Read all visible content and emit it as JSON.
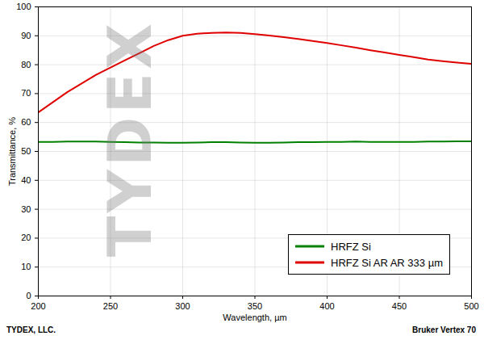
{
  "chart_data": {
    "type": "line",
    "x_label": "Wavelength, µm",
    "y_label": "Transmittance, %",
    "watermark": "TYDEX",
    "footer_left": "TYDEX, LLC.",
    "footer_right": "Bruker Vertex 70",
    "x": [
      200,
      210,
      220,
      230,
      240,
      250,
      260,
      270,
      280,
      290,
      300,
      310,
      320,
      330,
      340,
      350,
      360,
      370,
      380,
      390,
      400,
      410,
      420,
      430,
      440,
      450,
      460,
      470,
      480,
      490,
      500
    ],
    "series": [
      {
        "name": "HRFZ Si",
        "color": "#008000",
        "line_style": "solid",
        "values": [
          53.3,
          53.3,
          53.4,
          53.4,
          53.4,
          53.3,
          53.2,
          53.1,
          53.1,
          53.0,
          53.0,
          53.1,
          53.2,
          53.2,
          53.1,
          53.0,
          53.0,
          53.1,
          53.2,
          53.2,
          53.3,
          53.3,
          53.4,
          53.3,
          53.3,
          53.3,
          53.3,
          53.4,
          53.4,
          53.5,
          53.5
        ]
      },
      {
        "name": "HRFZ Si AR AR 333 µm",
        "color": "#e00000",
        "line_style": "solid",
        "values": [
          63.5,
          67.0,
          70.5,
          73.5,
          76.5,
          79.0,
          81.5,
          84.0,
          86.5,
          88.5,
          90.0,
          90.7,
          91.0,
          91.1,
          91.0,
          90.6,
          90.1,
          89.5,
          88.9,
          88.2,
          87.5,
          86.7,
          85.9,
          85.0,
          84.2,
          83.4,
          82.6,
          81.8,
          81.2,
          80.7,
          80.3
        ]
      }
    ],
    "xlim": [
      200,
      500
    ],
    "xticks": [
      200,
      250,
      300,
      350,
      400,
      450,
      500
    ],
    "ylim": [
      0,
      100
    ],
    "yticks": [
      0,
      10,
      20,
      30,
      40,
      50,
      60,
      70,
      80,
      90,
      100
    ],
    "grid": true,
    "legend": "bottom-right"
  }
}
